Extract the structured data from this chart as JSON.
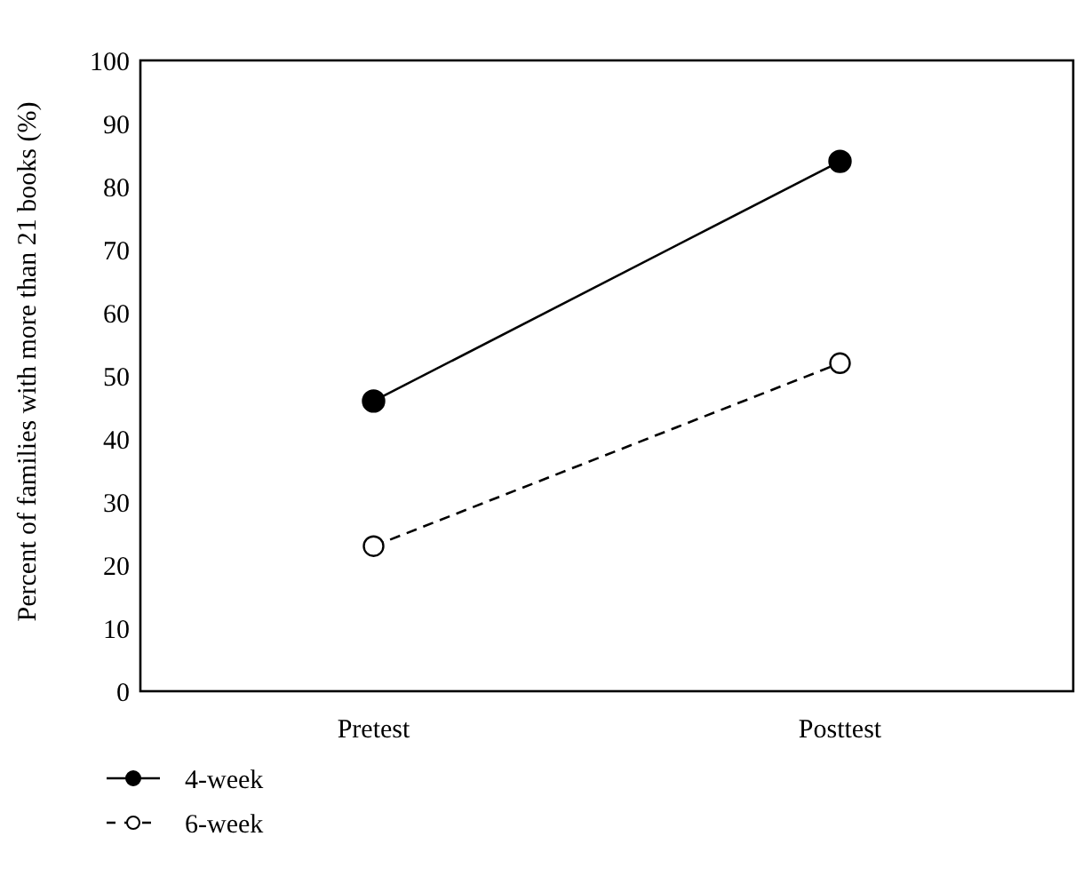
{
  "chart_data": {
    "type": "line",
    "ylabel": "Percent of families with more than 21 books (%)",
    "categories": [
      "Pretest",
      "Posttest"
    ],
    "ylim": [
      0,
      100
    ],
    "yticks": [
      0,
      10,
      20,
      30,
      40,
      50,
      60,
      70,
      80,
      90,
      100
    ],
    "grid": false,
    "legend": "bottom left",
    "marker": "circle",
    "series": [
      {
        "name": "4-week",
        "color": "#000000",
        "values": [
          46,
          84
        ],
        "line_style": "solid"
      },
      {
        "name": "6-week",
        "color": "#000000",
        "values": [
          23,
          52
        ],
        "line_style": "dashed"
      }
    ]
  }
}
